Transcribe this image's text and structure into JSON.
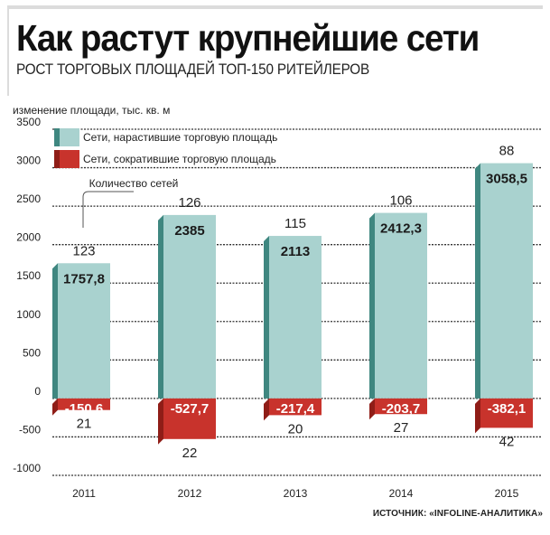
{
  "title": "Как растут крупнейшие сети",
  "subtitle": "РОСТ ТОРГОВЫХ ПЛОЩАДЕЙ ТОП-150 РИТЕЙЛЕРОВ",
  "source": "ИСТОЧНИК: «INFOLINE-АНАЛИТИКА»",
  "colors": {
    "grow_front": "#a9d2cf",
    "grow_side": "#3f8780",
    "shrink_front": "#c8332c",
    "shrink_side": "#8f1d17"
  },
  "chart_data": {
    "type": "bar",
    "title": "Как растут крупнейшие сети",
    "subtitle": "РОСТ ТОРГОВЫХ ПЛОЩАДЕЙ ТОП-150 РИТЕЙЛЕРОВ",
    "ylabel": "изменение площади, тыс. кв. м",
    "xlabel": "",
    "ylim": [
      -1000,
      3500
    ],
    "yticks": [
      "3500",
      "3000",
      "2500",
      "2000",
      "1500",
      "1000",
      "500",
      "0",
      "-500",
      "-1000"
    ],
    "grid": true,
    "categories": [
      "2011",
      "2012",
      "2013",
      "2014",
      "2015"
    ],
    "series": [
      {
        "name": "Сети, нарастившие торговую площадь",
        "values": [
          1757.8,
          2385,
          2113,
          2412.3,
          3058.5
        ],
        "labels": [
          "1757,8",
          "2385",
          "2113",
          "2412,3",
          "3058,5"
        ],
        "counts": [
          "123",
          "126",
          "115",
          "106",
          "88"
        ]
      },
      {
        "name": "Сети, сократившие торговую площадь",
        "values": [
          -150.6,
          -527.7,
          -217.4,
          -203.7,
          -382.1
        ],
        "labels": [
          "-150,6",
          "-527,7",
          "-217,4",
          "-203,7",
          "-382,1"
        ],
        "counts": [
          "21",
          "22",
          "20",
          "27",
          "42"
        ]
      }
    ],
    "annotation": "Количество сетей",
    "legend_position": "top-left"
  }
}
